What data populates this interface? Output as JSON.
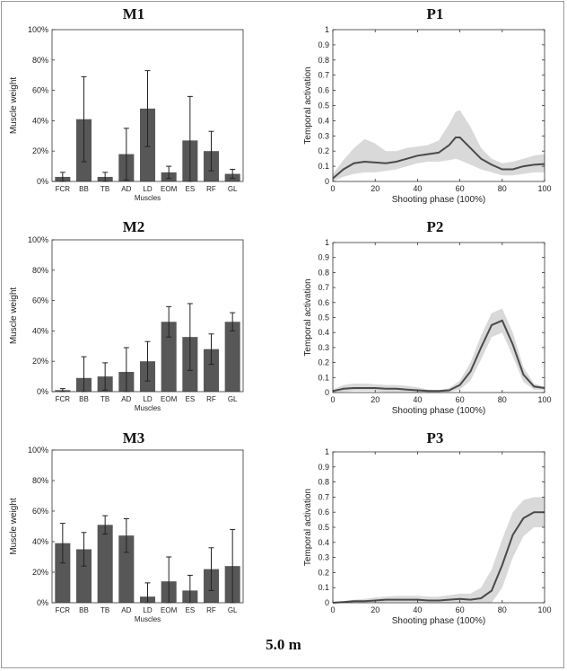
{
  "footer": "5.0 m",
  "colors": {
    "bar": "#575757",
    "line": "#4a4a4a",
    "band": "#d9d9d9",
    "axis": "#333333"
  },
  "chart_data": [
    {
      "id": "M1",
      "type": "bar",
      "title": "M1",
      "xlabel": "Muscles",
      "ylabel": "Muscle weight",
      "categories": [
        "FCR",
        "BB",
        "TB",
        "AD",
        "LD",
        "EOM",
        "ES",
        "RF",
        "GL"
      ],
      "values": [
        3,
        41,
        3,
        18,
        48,
        6,
        27,
        20,
        5
      ],
      "errors": [
        3,
        28,
        3,
        17,
        25,
        4,
        29,
        13,
        3
      ],
      "ylim": [
        0,
        100
      ],
      "yticks": [
        "0%",
        "20%",
        "40%",
        "60%",
        "80%",
        "100%"
      ]
    },
    {
      "id": "P1",
      "type": "line",
      "title": "P1",
      "xlabel": "Shooting phase (100%)",
      "ylabel": "Temporal activation",
      "xlim": [
        0,
        100
      ],
      "ylim": [
        0,
        1
      ],
      "xticks": [
        "0",
        "20",
        "40",
        "60",
        "80",
        "100"
      ],
      "yticks": [
        "0",
        "0.1",
        "0.2",
        "0.3",
        "0.4",
        "0.5",
        "0.6",
        "0.7",
        "0.8",
        "0.9",
        "1"
      ],
      "x": [
        0,
        5,
        10,
        15,
        20,
        25,
        30,
        35,
        40,
        45,
        50,
        55,
        58,
        60,
        65,
        70,
        75,
        80,
        85,
        90,
        95,
        100
      ],
      "mean": [
        0.02,
        0.08,
        0.12,
        0.13,
        0.125,
        0.12,
        0.13,
        0.15,
        0.17,
        0.18,
        0.19,
        0.24,
        0.29,
        0.29,
        0.22,
        0.15,
        0.11,
        0.08,
        0.08,
        0.1,
        0.11,
        0.115
      ],
      "upper": [
        0.05,
        0.14,
        0.22,
        0.28,
        0.25,
        0.2,
        0.2,
        0.22,
        0.23,
        0.24,
        0.27,
        0.38,
        0.46,
        0.47,
        0.36,
        0.22,
        0.15,
        0.12,
        0.13,
        0.15,
        0.17,
        0.18
      ],
      "lower": [
        0.0,
        0.03,
        0.05,
        0.06,
        0.06,
        0.07,
        0.08,
        0.1,
        0.12,
        0.13,
        0.13,
        0.14,
        0.15,
        0.14,
        0.11,
        0.08,
        0.06,
        0.04,
        0.04,
        0.05,
        0.06,
        0.06
      ]
    },
    {
      "id": "M2",
      "type": "bar",
      "title": "M2",
      "xlabel": "Muscles",
      "ylabel": "Muscle weight",
      "categories": [
        "FCR",
        "BB",
        "TB",
        "AD",
        "LD",
        "EOM",
        "ES",
        "RF",
        "GL"
      ],
      "values": [
        1,
        9,
        10,
        13,
        20,
        46,
        36,
        28,
        46
      ],
      "errors": [
        1,
        14,
        9,
        16,
        13,
        10,
        22,
        10,
        6
      ],
      "ylim": [
        0,
        100
      ],
      "yticks": [
        "0%",
        "20%",
        "40%",
        "60%",
        "80%",
        "100%"
      ]
    },
    {
      "id": "P2",
      "type": "line",
      "title": "P2",
      "xlabel": "Shooting phase (100%)",
      "ylabel": "Temporal activation",
      "xlim": [
        0,
        100
      ],
      "ylim": [
        0,
        1
      ],
      "xticks": [
        "0",
        "20",
        "40",
        "60",
        "80",
        "100"
      ],
      "yticks": [
        "0",
        "0.1",
        "0.2",
        "0.3",
        "0.4",
        "0.5",
        "0.6",
        "0.7",
        "0.8",
        "0.9",
        "1"
      ],
      "x": [
        0,
        5,
        10,
        15,
        20,
        25,
        30,
        35,
        40,
        45,
        50,
        55,
        60,
        65,
        70,
        75,
        80,
        85,
        90,
        95,
        100
      ],
      "mean": [
        0.01,
        0.025,
        0.03,
        0.03,
        0.03,
        0.025,
        0.025,
        0.02,
        0.015,
        0.01,
        0.01,
        0.015,
        0.05,
        0.14,
        0.3,
        0.45,
        0.48,
        0.32,
        0.12,
        0.04,
        0.03
      ],
      "upper": [
        0.02,
        0.05,
        0.06,
        0.06,
        0.055,
        0.05,
        0.05,
        0.045,
        0.035,
        0.02,
        0.015,
        0.03,
        0.08,
        0.2,
        0.38,
        0.53,
        0.56,
        0.4,
        0.17,
        0.06,
        0.04
      ],
      "lower": [
        0.0,
        0.005,
        0.01,
        0.01,
        0.01,
        0.005,
        0.005,
        0.005,
        0.0,
        0.0,
        0.0,
        0.005,
        0.02,
        0.08,
        0.22,
        0.37,
        0.4,
        0.24,
        0.07,
        0.02,
        0.015
      ]
    },
    {
      "id": "M3",
      "type": "bar",
      "title": "M3",
      "xlabel": "Muscles",
      "ylabel": "Muscle weight",
      "categories": [
        "FCR",
        "BB",
        "TB",
        "AD",
        "LD",
        "EOM",
        "ES",
        "RF",
        "GL"
      ],
      "values": [
        39,
        35,
        51,
        44,
        4,
        14,
        8,
        22,
        24
      ],
      "errors": [
        13,
        11,
        6,
        11,
        9,
        16,
        10,
        14,
        24
      ],
      "ylim": [
        0,
        100
      ],
      "yticks": [
        "0%",
        "20%",
        "40%",
        "60%",
        "80%",
        "100%"
      ]
    },
    {
      "id": "P3",
      "type": "line",
      "title": "P3",
      "xlabel": "Shooting phase (100%)",
      "ylabel": "Temporal activation",
      "xlim": [
        0,
        100
      ],
      "ylim": [
        0,
        1
      ],
      "xticks": [
        "0",
        "20",
        "40",
        "60",
        "80",
        "100"
      ],
      "yticks": [
        "0",
        "0.1",
        "0.2",
        "0.3",
        "0.4",
        "0.5",
        "0.6",
        "0.7",
        "0.8",
        "0.9",
        "1"
      ],
      "x": [
        0,
        5,
        10,
        15,
        20,
        25,
        30,
        35,
        40,
        45,
        50,
        55,
        60,
        65,
        70,
        75,
        80,
        85,
        90,
        95,
        100
      ],
      "mean": [
        0.0,
        0.005,
        0.01,
        0.01,
        0.015,
        0.02,
        0.02,
        0.02,
        0.02,
        0.015,
        0.015,
        0.02,
        0.025,
        0.02,
        0.03,
        0.08,
        0.25,
        0.45,
        0.56,
        0.6,
        0.6
      ],
      "upper": [
        0.005,
        0.01,
        0.02,
        0.025,
        0.035,
        0.04,
        0.045,
        0.045,
        0.045,
        0.04,
        0.04,
        0.05,
        0.06,
        0.06,
        0.1,
        0.22,
        0.42,
        0.6,
        0.68,
        0.7,
        0.7
      ],
      "lower": [
        0.0,
        0.0,
        0.0,
        0.0,
        0.0,
        0.005,
        0.005,
        0.005,
        0.005,
        0.0,
        0.0,
        0.0,
        0.0,
        0.0,
        0.0,
        0.0,
        0.1,
        0.3,
        0.44,
        0.5,
        0.5
      ]
    }
  ]
}
